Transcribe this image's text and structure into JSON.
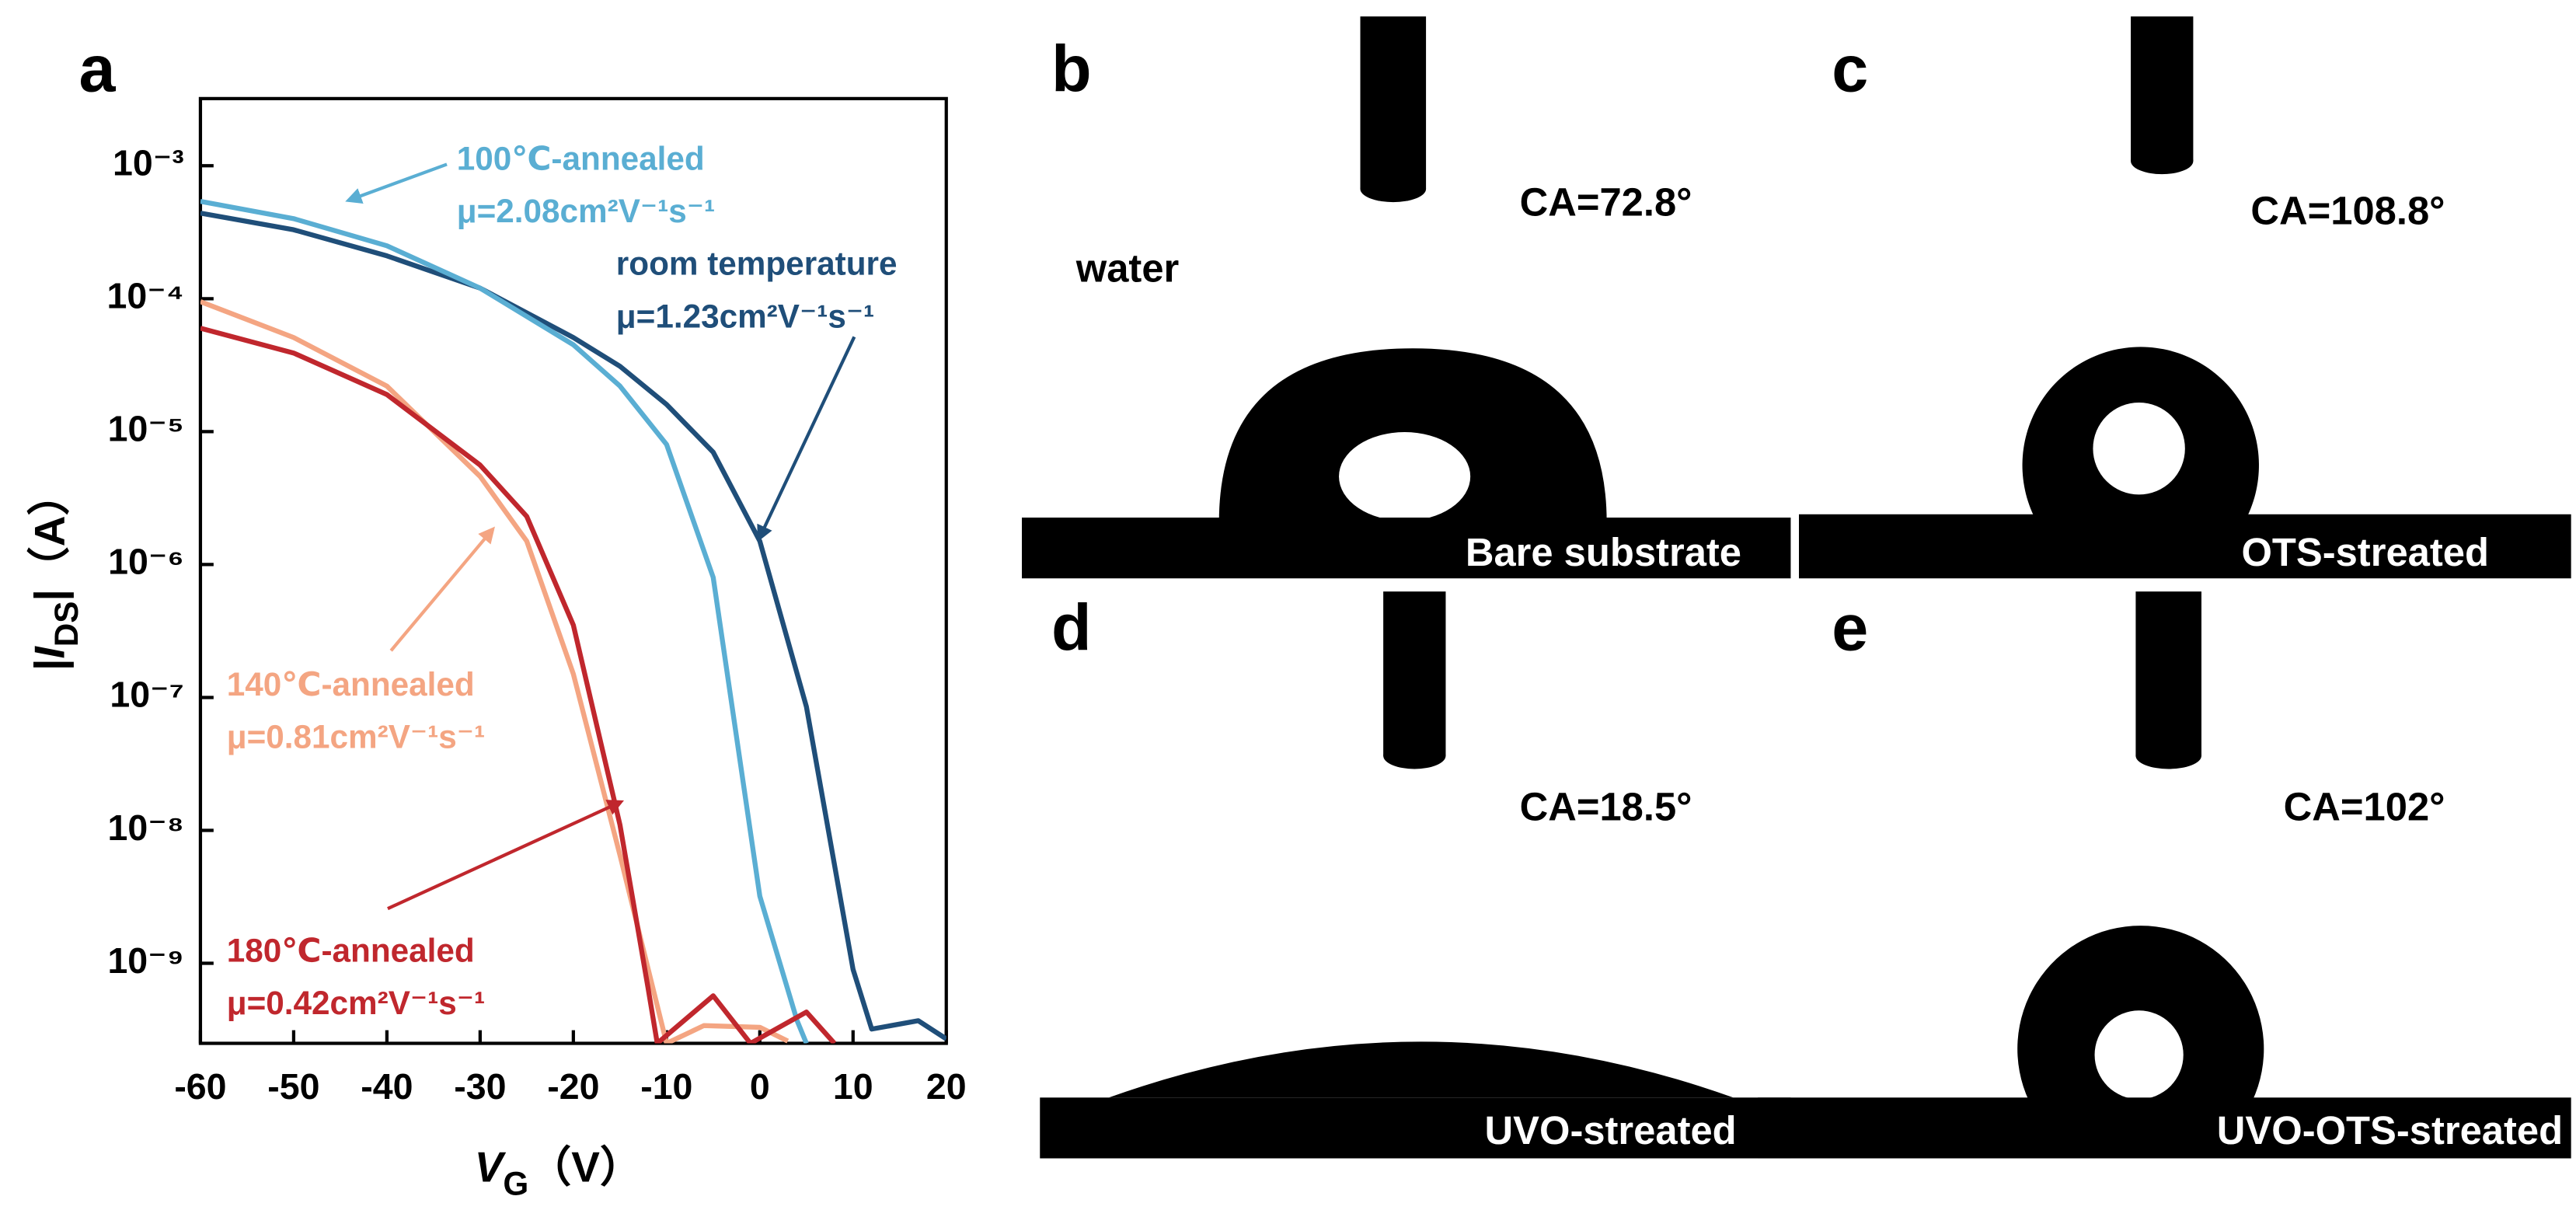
{
  "chart_data": {
    "type": "line",
    "panel": "a",
    "xlabel": [
      "V",
      "G",
      "（V）"
    ],
    "ylabel": [
      "|",
      "I",
      "DS",
      "|（A）"
    ],
    "log_y": true,
    "xlim": [
      -60,
      20
    ],
    "xticks": [
      -60,
      -50,
      -40,
      -30,
      -20,
      -10,
      0,
      10,
      20
    ],
    "ylim": [
      2.5e-10,
      0.0032
    ],
    "yticks": [
      {
        "value": 1e-09,
        "label": "10⁻⁹"
      },
      {
        "value": 1e-08,
        "label": "10⁻⁸"
      },
      {
        "value": 1e-07,
        "label": "10⁻⁷"
      },
      {
        "value": 1e-06,
        "label": "10⁻⁶"
      },
      {
        "value": 1e-05,
        "label": "10⁻⁵"
      },
      {
        "value": 0.0001,
        "label": "10⁻⁴"
      },
      {
        "value": 0.001,
        "label": "10⁻³"
      }
    ],
    "series": [
      {
        "name": "room temperature",
        "color": "#1f4e79",
        "x": [
          -60,
          -50,
          -40,
          -30,
          -20,
          -15,
          -10,
          -5,
          0,
          5,
          10,
          12,
          17,
          20
        ],
        "values": [
          0.00044,
          0.00033,
          0.00021,
          0.00012,
          5.1e-05,
          3.1e-05,
          1.6e-05,
          7e-06,
          1.5e-06,
          8.5e-08,
          9e-10,
          3.2e-10,
          3.7e-10,
          2.7e-10
        ]
      },
      {
        "name": "100℃-annealed",
        "color": "#5aaed3",
        "x": [
          -60,
          -50,
          -40,
          -30,
          -20,
          -15,
          -10,
          -5,
          0,
          4,
          5
        ],
        "values": [
          0.00054,
          0.0004,
          0.00025,
          0.00012,
          4.5e-05,
          2.2e-05,
          8e-06,
          8e-07,
          3.2e-09,
          3.7e-10,
          2.5e-10
        ]
      },
      {
        "name": "140℃-annealed",
        "color": "#f4a582",
        "x": [
          -60,
          -50,
          -40,
          -30,
          -25,
          -20,
          -15,
          -10,
          -6,
          0,
          3
        ],
        "values": [
          9.5e-05,
          5.1e-05,
          2.2e-05,
          4.6e-06,
          1.5e-06,
          1.5e-07,
          6.5e-09,
          2.5e-10,
          3.4e-10,
          3.3e-10,
          2.6e-10
        ]
      },
      {
        "name": "180℃-annealed",
        "color": "#c0272d",
        "x": [
          -60,
          -50,
          -40,
          -30,
          -25,
          -20,
          -15,
          -12,
          -11,
          -5,
          -1,
          5,
          8
        ],
        "values": [
          6e-05,
          3.9e-05,
          1.9e-05,
          5.6e-06,
          2.3e-06,
          3.5e-07,
          1.1e-08,
          6.6e-10,
          2.5e-10,
          5.7e-10,
          2.5e-10,
          4.3e-10,
          2.5e-10
        ]
      }
    ],
    "annotations": [
      {
        "text": [
          "100℃-annealed",
          "μ=2.08cm²V⁻¹s⁻¹"
        ],
        "color": "#5aaed3"
      },
      {
        "text": [
          "room temperature",
          "μ=1.23cm²V⁻¹s⁻¹"
        ],
        "color": "#1f4e79"
      },
      {
        "text": [
          "140℃-annealed",
          "μ=0.81cm²V⁻¹s⁻¹"
        ],
        "color": "#f4a582"
      },
      {
        "text": [
          "180℃-annealed",
          "μ=0.42cm²V⁻¹s⁻¹"
        ],
        "color": "#c0272d"
      }
    ]
  },
  "panels": [
    {
      "letter": "b",
      "contact_angle": "CA=72.8°",
      "caption": "Bare substrate",
      "liquid": "water"
    },
    {
      "letter": "c",
      "contact_angle": "CA=108.8°",
      "caption": "OTS-streated"
    },
    {
      "letter": "d",
      "contact_angle": "CA=18.5°",
      "caption": "UVO-streated"
    },
    {
      "letter": "e",
      "contact_angle": "CA=102°",
      "caption": "UVO-OTS-streated"
    }
  ]
}
